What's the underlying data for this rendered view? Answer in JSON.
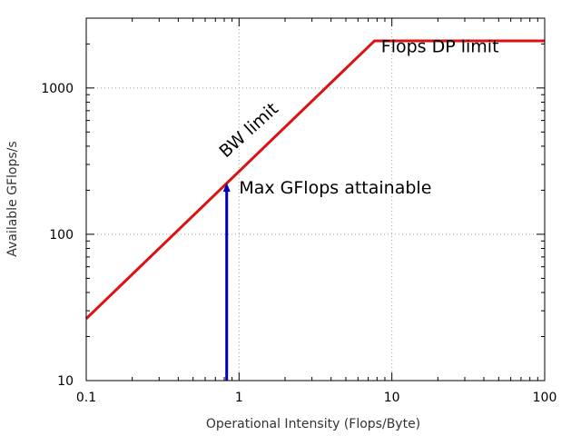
{
  "chart_data": {
    "type": "line",
    "title": "",
    "xlabel": "Operational Intensity (Flops/Byte)",
    "ylabel": "Available GFlops/s",
    "x_scale": "log",
    "y_scale": "log",
    "xlim": [
      0.1,
      100
    ],
    "ylim": [
      10,
      3000
    ],
    "x_ticks": [
      0.1,
      1,
      10,
      100
    ],
    "x_tick_labels": [
      "0.1",
      "1",
      "10",
      "100"
    ],
    "y_ticks": [
      10,
      100,
      1000
    ],
    "y_tick_labels": [
      "10",
      "100",
      "1000"
    ],
    "grid": true,
    "legend": "none",
    "series": [
      {
        "color": "#dd1111",
        "x": [
          0.1,
          7.7,
          100
        ],
        "y": [
          26.5,
          2100,
          2100
        ]
      }
    ],
    "arrow": {
      "color": "#0000bb",
      "x": 0.83,
      "y_start": 10,
      "y_end": 222
    },
    "annotations": [
      {
        "text": "Flops DP limit",
        "x": 8.5,
        "y": 1750,
        "rotation": 0
      },
      {
        "text": "BW limit",
        "x": 0.82,
        "y": 330,
        "rotation": -42
      },
      {
        "text": "Max GFlops attainable",
        "x": 1.0,
        "y": 190,
        "rotation": 0
      }
    ]
  }
}
